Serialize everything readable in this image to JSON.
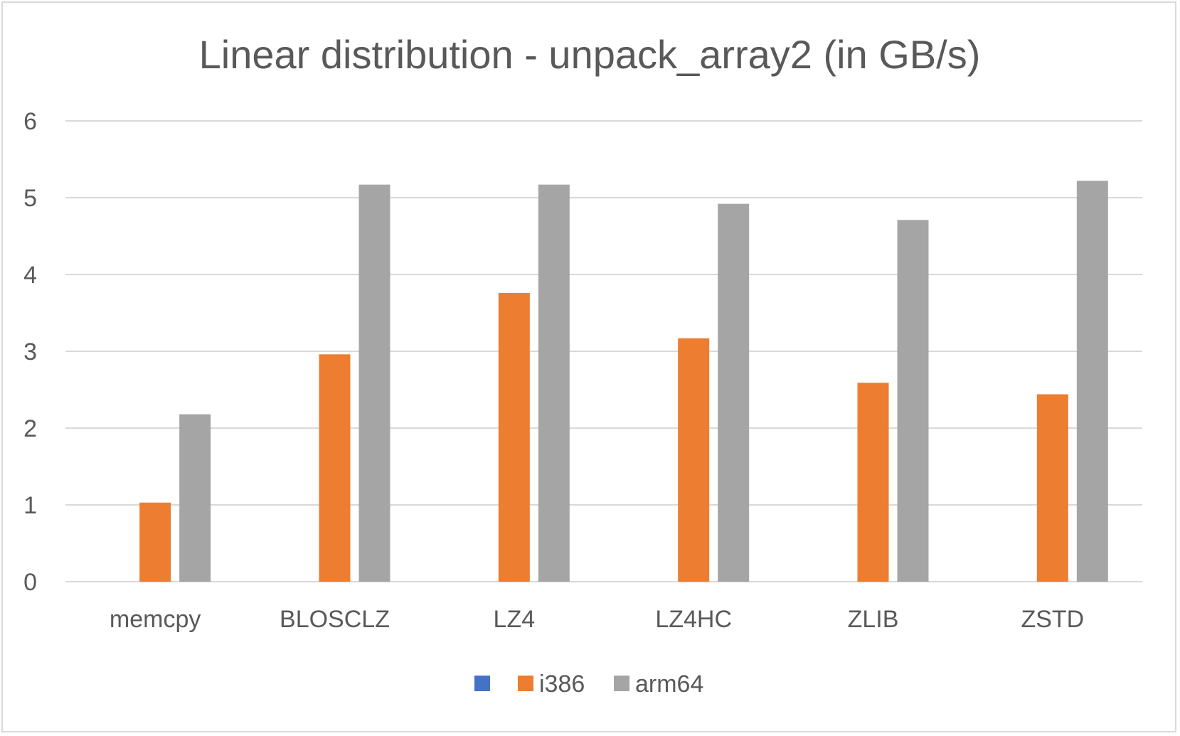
{
  "chart_data": {
    "type": "bar",
    "title": "Linear distribution - unpack_array2 (in GB/s)",
    "xlabel": "",
    "ylabel": "",
    "categories": [
      "memcpy",
      "BLOSCLZ",
      "LZ4",
      "LZ4HC",
      "ZLIB",
      "ZSTD"
    ],
    "series": [
      {
        "name": "",
        "color": "#4472C4",
        "values": [
          null,
          null,
          null,
          null,
          null,
          null
        ]
      },
      {
        "name": "i386",
        "color": "#ED7D31",
        "values": [
          1.03,
          2.96,
          3.76,
          3.17,
          2.59,
          2.44
        ]
      },
      {
        "name": "arm64",
        "color": "#A5A5A5",
        "values": [
          2.18,
          5.17,
          5.17,
          4.92,
          4.71,
          5.22
        ]
      }
    ],
    "ylim": [
      0,
      6
    ],
    "yticks": [
      0,
      1,
      2,
      3,
      4,
      5,
      6
    ],
    "grid": true,
    "legend_position": "bottom"
  }
}
